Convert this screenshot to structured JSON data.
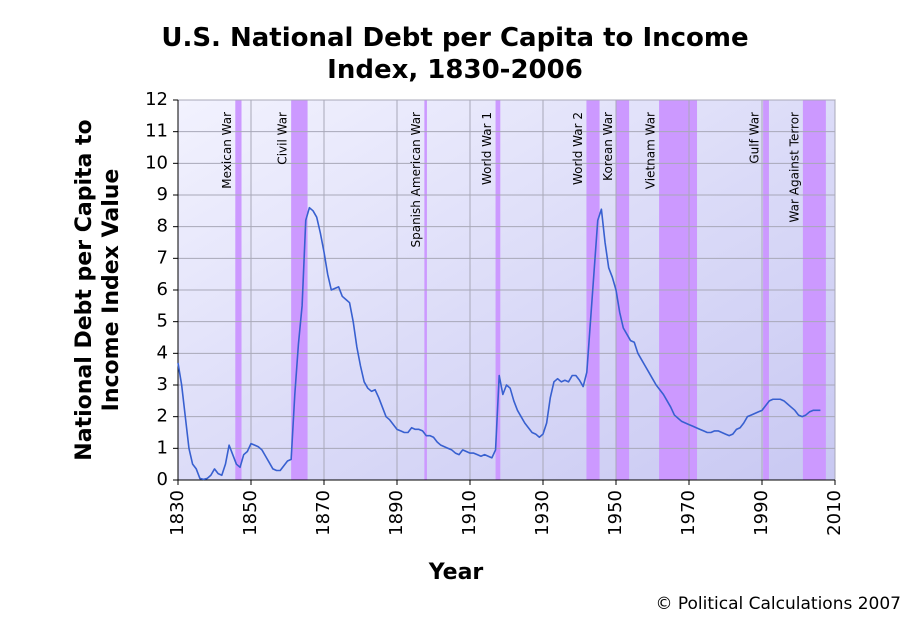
{
  "chart_data": {
    "type": "line",
    "title": "U.S. National Debt per Capita to Income Index, 1830-2006",
    "x_label": "Year",
    "y_label": "National Debt per Capita to Income Index Value",
    "credit": "© Political Calculations 2007",
    "color": "#3860d0",
    "band_color": "#cc99ff",
    "grid": true,
    "xlim": [
      1830,
      2010
    ],
    "xticks": [
      1830,
      1850,
      1870,
      1890,
      1910,
      1930,
      1950,
      1970,
      1990,
      2010
    ],
    "ylim": [
      0,
      12
    ],
    "yticks": [
      0,
      1,
      2,
      3,
      4,
      5,
      6,
      7,
      8,
      9,
      10,
      11,
      12
    ],
    "wars": [
      {
        "label": "Mexican War",
        "start": 1845.7,
        "end": 1847.4
      },
      {
        "label": "Civil War",
        "start": 1861,
        "end": 1865.5
      },
      {
        "label": "Spanish American War",
        "start": 1897.5,
        "end": 1898.2
      },
      {
        "label": "World War 1",
        "start": 1917,
        "end": 1918.3
      },
      {
        "label": "World War 2",
        "start": 1941.9,
        "end": 1945.5
      },
      {
        "label": "Korean War",
        "start": 1950.1,
        "end": 1953.6
      },
      {
        "label": "Vietnam War",
        "start": 1961.8,
        "end": 1972.2
      },
      {
        "label": "Gulf War",
        "start": 1990.3,
        "end": 1991.9
      },
      {
        "label": "War Against Terror",
        "start": 2001.2,
        "end": 2007.5
      }
    ],
    "x": [
      1830,
      1831,
      1832,
      1833,
      1834,
      1835,
      1836,
      1837,
      1838,
      1839,
      1840,
      1841,
      1842,
      1843,
      1844,
      1845,
      1846,
      1847,
      1848,
      1849,
      1850,
      1851,
      1852,
      1853,
      1854,
      1855,
      1856,
      1857,
      1858,
      1859,
      1860,
      1861,
      1862,
      1863,
      1864,
      1865,
      1866,
      1867,
      1868,
      1869,
      1870,
      1871,
      1872,
      1873,
      1874,
      1875,
      1876,
      1877,
      1878,
      1879,
      1880,
      1881,
      1882,
      1883,
      1884,
      1885,
      1886,
      1887,
      1888,
      1889,
      1890,
      1891,
      1892,
      1893,
      1894,
      1895,
      1896,
      1897,
      1898,
      1899,
      1900,
      1901,
      1902,
      1903,
      1904,
      1905,
      1906,
      1907,
      1908,
      1909,
      1910,
      1911,
      1912,
      1913,
      1914,
      1915,
      1916,
      1917,
      1918,
      1919,
      1920,
      1921,
      1922,
      1923,
      1924,
      1925,
      1926,
      1927,
      1928,
      1929,
      1930,
      1931,
      1932,
      1933,
      1934,
      1935,
      1936,
      1937,
      1938,
      1939,
      1940,
      1941,
      1942,
      1943,
      1944,
      1945,
      1946,
      1947,
      1948,
      1949,
      1950,
      1951,
      1952,
      1953,
      1954,
      1955,
      1956,
      1957,
      1958,
      1959,
      1960,
      1961,
      1962,
      1963,
      1964,
      1965,
      1966,
      1967,
      1968,
      1969,
      1970,
      1971,
      1972,
      1973,
      1974,
      1975,
      1976,
      1977,
      1978,
      1979,
      1980,
      1981,
      1982,
      1983,
      1984,
      1985,
      1986,
      1987,
      1988,
      1989,
      1990,
      1991,
      1992,
      1993,
      1994,
      1995,
      1996,
      1997,
      1998,
      1999,
      2000,
      2001,
      2002,
      2003,
      2004,
      2005,
      2006
    ],
    "series": [
      {
        "name": "Index",
        "values": [
          3.7,
          3.0,
          2.0,
          1.0,
          0.5,
          0.35,
          0.05,
          0.02,
          0.05,
          0.15,
          0.35,
          0.2,
          0.15,
          0.5,
          1.1,
          0.8,
          0.5,
          0.4,
          0.8,
          0.9,
          1.15,
          1.1,
          1.05,
          0.95,
          0.75,
          0.55,
          0.35,
          0.3,
          0.3,
          0.45,
          0.6,
          0.65,
          2.7,
          4.3,
          5.5,
          8.2,
          8.6,
          8.5,
          8.3,
          7.8,
          7.2,
          6.5,
          6.0,
          6.05,
          6.1,
          5.8,
          5.7,
          5.6,
          5.0,
          4.2,
          3.6,
          3.1,
          2.9,
          2.8,
          2.85,
          2.6,
          2.3,
          2.0,
          1.9,
          1.75,
          1.6,
          1.55,
          1.5,
          1.5,
          1.65,
          1.6,
          1.6,
          1.55,
          1.4,
          1.4,
          1.35,
          1.2,
          1.1,
          1.05,
          1.0,
          0.95,
          0.85,
          0.8,
          0.95,
          0.9,
          0.85,
          0.85,
          0.8,
          0.75,
          0.8,
          0.75,
          0.7,
          0.95,
          3.3,
          2.7,
          3.0,
          2.9,
          2.5,
          2.2,
          2.0,
          1.8,
          1.65,
          1.5,
          1.45,
          1.35,
          1.45,
          1.8,
          2.6,
          3.1,
          3.2,
          3.1,
          3.15,
          3.1,
          3.3,
          3.3,
          3.15,
          2.95,
          3.4,
          5.0,
          6.6,
          8.2,
          8.55,
          7.5,
          6.7,
          6.4,
          6.0,
          5.3,
          4.8,
          4.6,
          4.4,
          4.35,
          4.0,
          3.8,
          3.6,
          3.4,
          3.2,
          3.0,
          2.85,
          2.7,
          2.5,
          2.3,
          2.05,
          1.95,
          1.85,
          1.8,
          1.75,
          1.7,
          1.65,
          1.6,
          1.55,
          1.5,
          1.5,
          1.55,
          1.55,
          1.5,
          1.45,
          1.4,
          1.45,
          1.6,
          1.65,
          1.8,
          2.0,
          2.05,
          2.1,
          2.15,
          2.2,
          2.35,
          2.5,
          2.55,
          2.55,
          2.55,
          2.5,
          2.4,
          2.3,
          2.2,
          2.05,
          2.0,
          2.05,
          2.15,
          2.2,
          2.2,
          2.2
        ]
      }
    ]
  }
}
